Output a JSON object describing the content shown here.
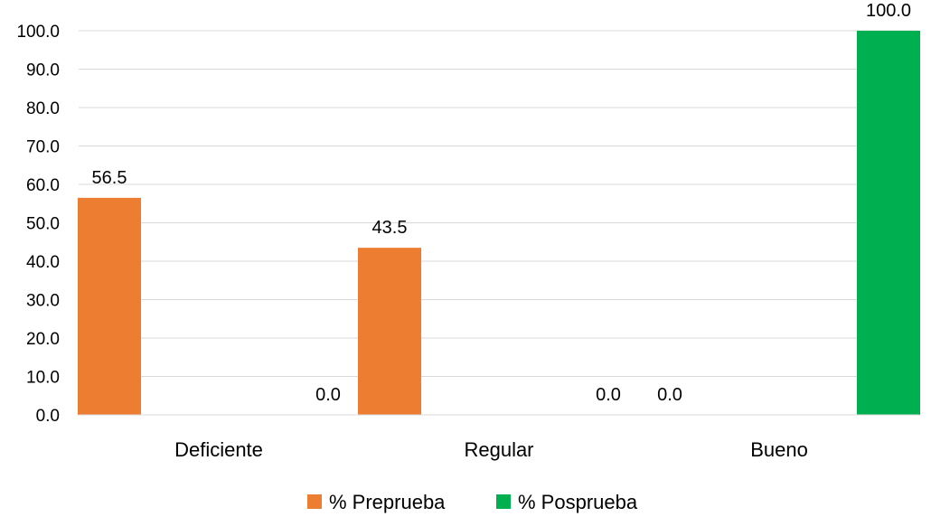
{
  "chart_data": {
    "type": "bar",
    "categories": [
      "Deficiente",
      "Regular",
      "Bueno"
    ],
    "series": [
      {
        "name": "% Preprueba",
        "values": [
          56.5,
          43.5,
          0.0
        ],
        "color": "#ED7D31"
      },
      {
        "name": "% Posprueba",
        "values": [
          0.0,
          0.0,
          100.0
        ],
        "color": "#00B050"
      }
    ],
    "y_ticks": [
      "0.0",
      "10.0",
      "20.0",
      "30.0",
      "40.0",
      "50.0",
      "60.0",
      "70.0",
      "80.0",
      "90.0",
      "100.0"
    ],
    "data_labels": [
      [
        "56.5",
        "43.5",
        "0.0"
      ],
      [
        "0.0",
        "0.0",
        "100.0"
      ]
    ],
    "ylim": [
      0,
      100
    ],
    "grid": true,
    "legend_position": "bottom",
    "title": "",
    "xlabel": "",
    "ylabel": ""
  }
}
